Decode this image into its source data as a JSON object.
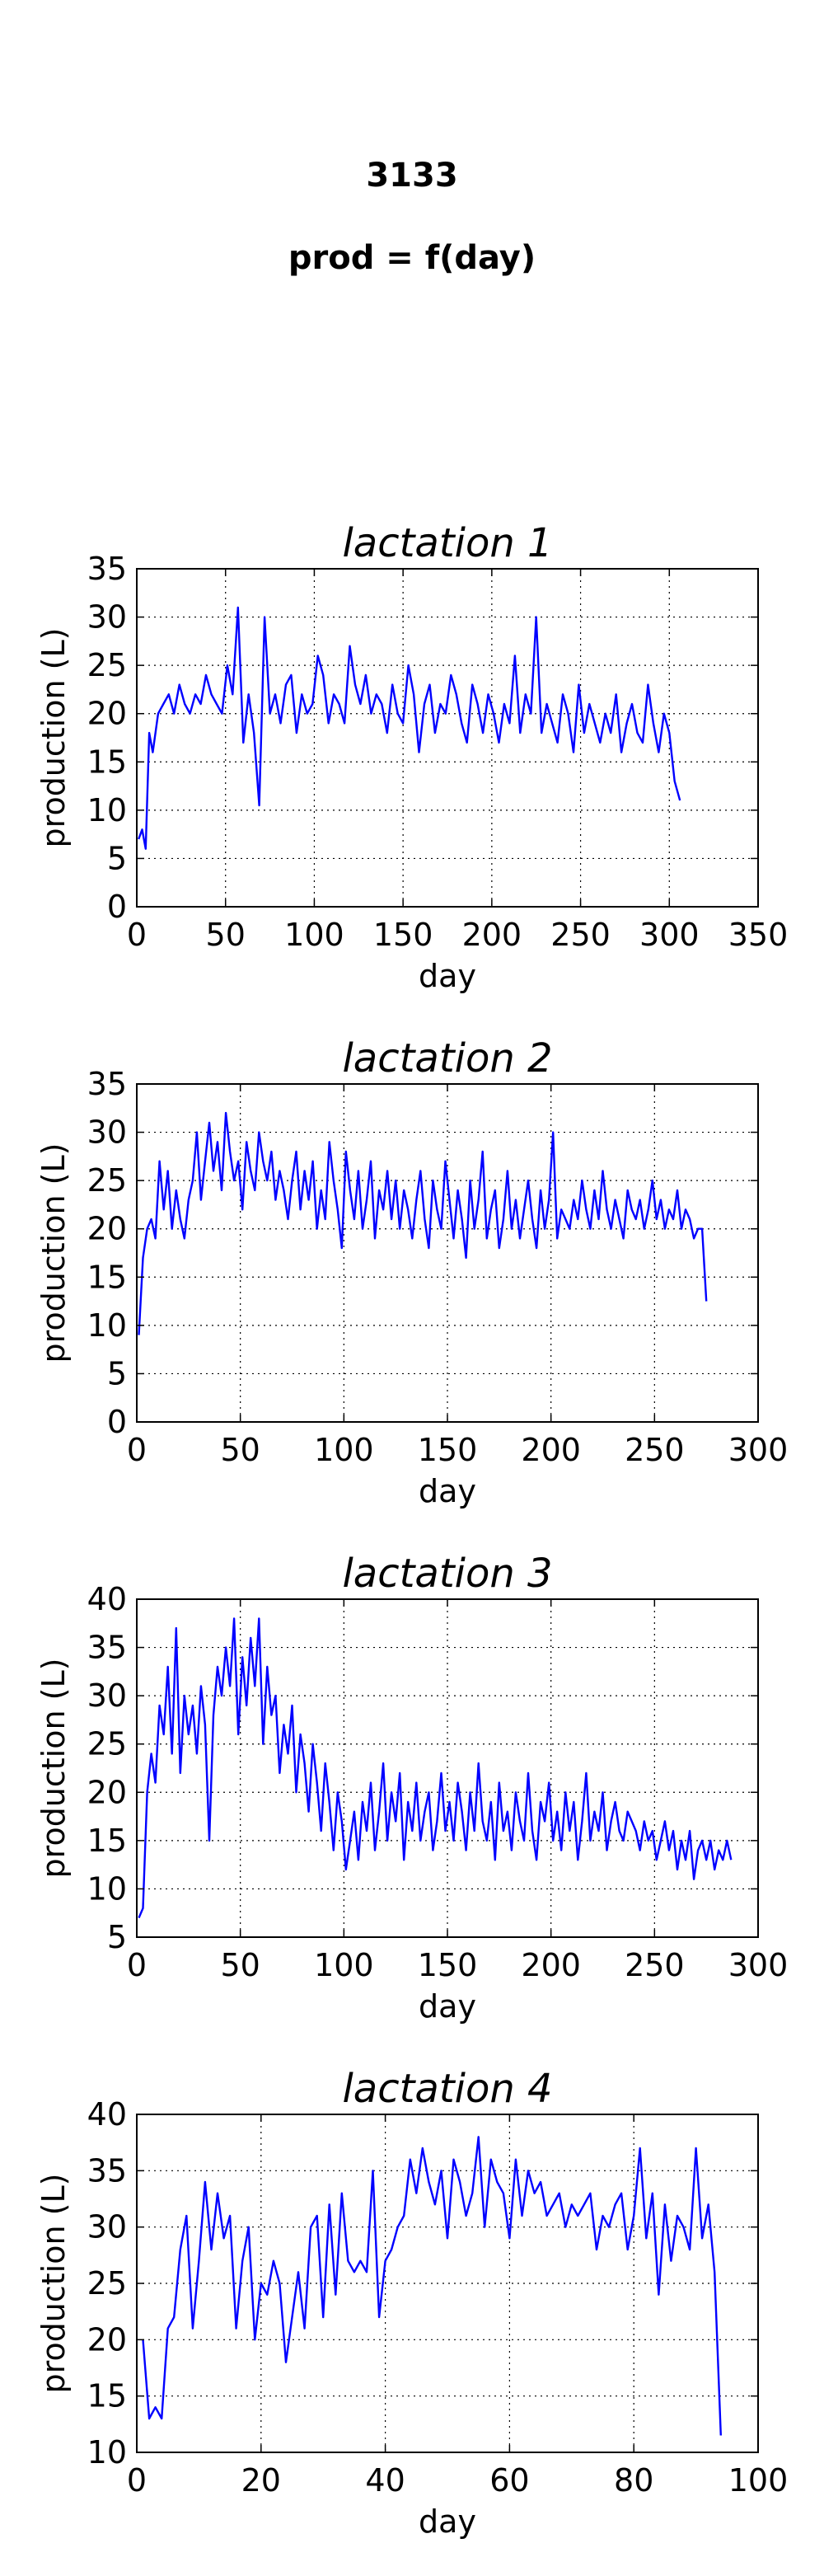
{
  "header": {
    "id": "3133",
    "subtitle": "prod = f(day)"
  },
  "style": {
    "line_color": "#0000ff",
    "axis_color": "#000000",
    "grid": "dotted"
  },
  "chart_data": [
    {
      "type": "line",
      "title": "lactation 1",
      "xlabel": "day",
      "ylabel": "production (L)",
      "xlim": [
        0,
        350
      ],
      "ylim": [
        0,
        35
      ],
      "xticks": [
        0,
        50,
        100,
        150,
        200,
        250,
        300,
        350
      ],
      "yticks": [
        0,
        5,
        10,
        15,
        20,
        25,
        30,
        35
      ],
      "grid": true,
      "series": [
        {
          "x": [
            1,
            3,
            5,
            7,
            9,
            12,
            15,
            18,
            21,
            24,
            27,
            30,
            33,
            36,
            39,
            42,
            45,
            48,
            51,
            54,
            57,
            60,
            63,
            66,
            69,
            72,
            75,
            78,
            81,
            84,
            87,
            90,
            93,
            96,
            99,
            102,
            105,
            108,
            111,
            114,
            117,
            120,
            123,
            126,
            129,
            132,
            135,
            138,
            141,
            144,
            147,
            150,
            153,
            156,
            159,
            162,
            165,
            168,
            171,
            174,
            177,
            180,
            183,
            186,
            189,
            192,
            195,
            198,
            201,
            204,
            207,
            210,
            213,
            216,
            219,
            222,
            225,
            228,
            231,
            234,
            237,
            240,
            243,
            246,
            249,
            252,
            255,
            258,
            261,
            264,
            267,
            270,
            273,
            276,
            279,
            282,
            285,
            288,
            291,
            294,
            297,
            300,
            303,
            306
          ],
          "y": [
            7,
            8,
            6,
            18,
            16,
            20,
            21,
            22,
            20,
            23,
            21,
            20,
            22,
            21,
            24,
            22,
            21,
            20,
            25,
            22,
            31,
            17,
            22,
            18,
            10.5,
            30,
            20,
            22,
            19,
            23,
            24,
            18,
            22,
            20,
            21,
            26,
            24,
            19,
            22,
            21,
            19,
            27,
            23,
            21,
            24,
            20,
            22,
            21,
            18,
            23,
            20,
            19,
            25,
            22,
            16,
            21,
            23,
            18,
            21,
            20,
            24,
            22,
            19,
            17,
            23,
            21,
            18,
            22,
            20,
            17,
            21,
            19,
            26,
            18,
            22,
            20,
            30,
            18,
            21,
            19,
            17,
            22,
            20,
            16,
            23,
            18,
            21,
            19,
            17,
            20,
            18,
            22,
            16,
            19,
            21,
            18,
            17,
            23,
            19,
            16,
            20,
            18,
            13,
            11
          ]
        }
      ]
    },
    {
      "type": "line",
      "title": "lactation 2",
      "xlabel": "day",
      "ylabel": "production (L)",
      "xlim": [
        0,
        300
      ],
      "ylim": [
        0,
        35
      ],
      "xticks": [
        0,
        50,
        100,
        150,
        200,
        250,
        300
      ],
      "yticks": [
        0,
        5,
        10,
        15,
        20,
        25,
        30,
        35
      ],
      "grid": true,
      "series": [
        {
          "x": [
            1,
            3,
            5,
            7,
            9,
            11,
            13,
            15,
            17,
            19,
            21,
            23,
            25,
            27,
            29,
            31,
            33,
            35,
            37,
            39,
            41,
            43,
            45,
            47,
            49,
            51,
            53,
            55,
            57,
            59,
            61,
            63,
            65,
            67,
            69,
            71,
            73,
            75,
            77,
            79,
            81,
            83,
            85,
            87,
            89,
            91,
            93,
            95,
            97,
            99,
            101,
            103,
            105,
            107,
            109,
            111,
            113,
            115,
            117,
            119,
            121,
            123,
            125,
            127,
            129,
            131,
            133,
            135,
            137,
            139,
            141,
            143,
            145,
            147,
            149,
            151,
            153,
            155,
            157,
            159,
            161,
            163,
            165,
            167,
            169,
            171,
            173,
            175,
            177,
            179,
            181,
            183,
            185,
            187,
            189,
            191,
            193,
            195,
            197,
            199,
            201,
            203,
            205,
            207,
            209,
            211,
            213,
            215,
            217,
            219,
            221,
            223,
            225,
            227,
            229,
            231,
            233,
            235,
            237,
            239,
            241,
            243,
            245,
            247,
            249,
            251,
            253,
            255,
            257,
            259,
            261,
            263,
            265,
            267,
            269,
            271,
            273,
            275
          ],
          "y": [
            9,
            17,
            20,
            21,
            19,
            27,
            22,
            26,
            20,
            24,
            21,
            19,
            23,
            25,
            30,
            23,
            27,
            31,
            26,
            29,
            24,
            32,
            28,
            25,
            27,
            22,
            29,
            26,
            24,
            30,
            27,
            25,
            28,
            23,
            26,
            24,
            21,
            25,
            28,
            22,
            26,
            23,
            27,
            20,
            24,
            21,
            29,
            25,
            22,
            18,
            28,
            24,
            21,
            26,
            20,
            23,
            27,
            19,
            24,
            22,
            26,
            21,
            25,
            20,
            24,
            22,
            19,
            23,
            26,
            21,
            18,
            25,
            22,
            20,
            27,
            23,
            19,
            24,
            21,
            17,
            25,
            20,
            23,
            28,
            19,
            22,
            24,
            18,
            21,
            26,
            20,
            23,
            19,
            22,
            25,
            21,
            18,
            24,
            20,
            23,
            30,
            19,
            22,
            21,
            20,
            23,
            21,
            25,
            22,
            20,
            24,
            21,
            26,
            22,
            20,
            23,
            21,
            19,
            24,
            22,
            21,
            23,
            20,
            22,
            25,
            21,
            23,
            20,
            22,
            21,
            24,
            20,
            22,
            21,
            19,
            20,
            20,
            12.5
          ]
        }
      ]
    },
    {
      "type": "line",
      "title": "lactation 3",
      "xlabel": "day",
      "ylabel": "production (L)",
      "xlim": [
        0,
        300
      ],
      "ylim": [
        5,
        40
      ],
      "xticks": [
        0,
        50,
        100,
        150,
        200,
        250,
        300
      ],
      "yticks": [
        5,
        10,
        15,
        20,
        25,
        30,
        35,
        40
      ],
      "grid": true,
      "series": [
        {
          "x": [
            1,
            3,
            5,
            7,
            9,
            11,
            13,
            15,
            17,
            19,
            21,
            23,
            25,
            27,
            29,
            31,
            33,
            35,
            37,
            39,
            41,
            43,
            45,
            47,
            49,
            51,
            53,
            55,
            57,
            59,
            61,
            63,
            65,
            67,
            69,
            71,
            73,
            75,
            77,
            79,
            81,
            83,
            85,
            87,
            89,
            91,
            93,
            95,
            97,
            99,
            101,
            103,
            105,
            107,
            109,
            111,
            113,
            115,
            117,
            119,
            121,
            123,
            125,
            127,
            129,
            131,
            133,
            135,
            137,
            139,
            141,
            143,
            145,
            147,
            149,
            151,
            153,
            155,
            157,
            159,
            161,
            163,
            165,
            167,
            169,
            171,
            173,
            175,
            177,
            179,
            181,
            183,
            185,
            187,
            189,
            191,
            193,
            195,
            197,
            199,
            201,
            203,
            205,
            207,
            209,
            211,
            213,
            215,
            217,
            219,
            221,
            223,
            225,
            227,
            229,
            231,
            233,
            235,
            237,
            239,
            241,
            243,
            245,
            247,
            249,
            251,
            253,
            255,
            257,
            259,
            261,
            263,
            265,
            267,
            269,
            271,
            273,
            275,
            277,
            279,
            281,
            283,
            285,
            287
          ],
          "y": [
            7,
            8,
            20,
            24,
            21,
            29,
            26,
            33,
            24,
            37,
            22,
            30,
            26,
            29,
            24,
            31,
            27,
            15,
            28,
            33,
            30,
            35,
            31,
            38,
            26,
            34,
            29,
            36,
            31,
            38,
            25,
            33,
            28,
            30,
            22,
            27,
            24,
            29,
            20,
            26,
            23,
            18,
            25,
            21,
            16,
            23,
            19,
            14,
            20,
            17,
            12,
            15,
            18,
            13,
            19,
            16,
            21,
            14,
            18,
            23,
            15,
            20,
            17,
            22,
            13,
            19,
            16,
            21,
            15,
            18,
            20,
            14,
            17,
            22,
            16,
            19,
            15,
            21,
            18,
            14,
            20,
            16,
            23,
            17,
            15,
            19,
            13,
            21,
            16,
            18,
            14,
            20,
            17,
            15,
            22,
            16,
            13,
            19,
            17,
            21,
            15,
            18,
            14,
            20,
            16,
            19,
            13,
            17,
            22,
            15,
            18,
            16,
            20,
            14,
            17,
            19,
            16,
            15,
            18,
            17,
            16,
            14,
            17,
            15,
            16,
            13,
            15,
            17,
            14,
            16,
            12,
            15,
            13,
            16,
            11,
            14,
            15,
            13,
            15,
            12,
            14,
            13,
            15,
            13
          ]
        }
      ]
    },
    {
      "type": "line",
      "title": "lactation 4",
      "xlabel": "day",
      "ylabel": "production (L)",
      "xlim": [
        0,
        100
      ],
      "ylim": [
        10,
        40
      ],
      "xticks": [
        0,
        20,
        40,
        60,
        80,
        100
      ],
      "yticks": [
        10,
        15,
        20,
        25,
        30,
        35,
        40
      ],
      "grid": true,
      "series": [
        {
          "x": [
            1,
            2,
            3,
            4,
            5,
            6,
            7,
            8,
            9,
            10,
            11,
            12,
            13,
            14,
            15,
            16,
            17,
            18,
            19,
            20,
            21,
            22,
            23,
            24,
            25,
            26,
            27,
            28,
            29,
            30,
            31,
            32,
            33,
            34,
            35,
            36,
            37,
            38,
            39,
            40,
            41,
            42,
            43,
            44,
            45,
            46,
            47,
            48,
            49,
            50,
            51,
            52,
            53,
            54,
            55,
            56,
            57,
            58,
            59,
            60,
            61,
            62,
            63,
            64,
            65,
            66,
            67,
            68,
            69,
            70,
            71,
            72,
            73,
            74,
            75,
            76,
            77,
            78,
            79,
            80,
            81,
            82,
            83,
            84,
            85,
            86,
            87,
            88,
            89,
            90,
            91,
            92,
            93,
            94
          ],
          "y": [
            20,
            13,
            14,
            13,
            21,
            22,
            28,
            31,
            21,
            27,
            34,
            28,
            33,
            29,
            31,
            21,
            27,
            30,
            20,
            25,
            24,
            27,
            25,
            18,
            22,
            26,
            21,
            30,
            31,
            22,
            32,
            24,
            33,
            27,
            26,
            27,
            26,
            35,
            22,
            27,
            28,
            30,
            31,
            36,
            33,
            37,
            34,
            32,
            35,
            29,
            36,
            34,
            31,
            33,
            38,
            30,
            36,
            34,
            33,
            29,
            36,
            31,
            35,
            33,
            34,
            31,
            32,
            33,
            30,
            32,
            31,
            32,
            33,
            28,
            31,
            30,
            32,
            33,
            28,
            31,
            37,
            29,
            33,
            24,
            32,
            27,
            31,
            30,
            28,
            37,
            29,
            32,
            26,
            11.5
          ]
        }
      ]
    }
  ]
}
